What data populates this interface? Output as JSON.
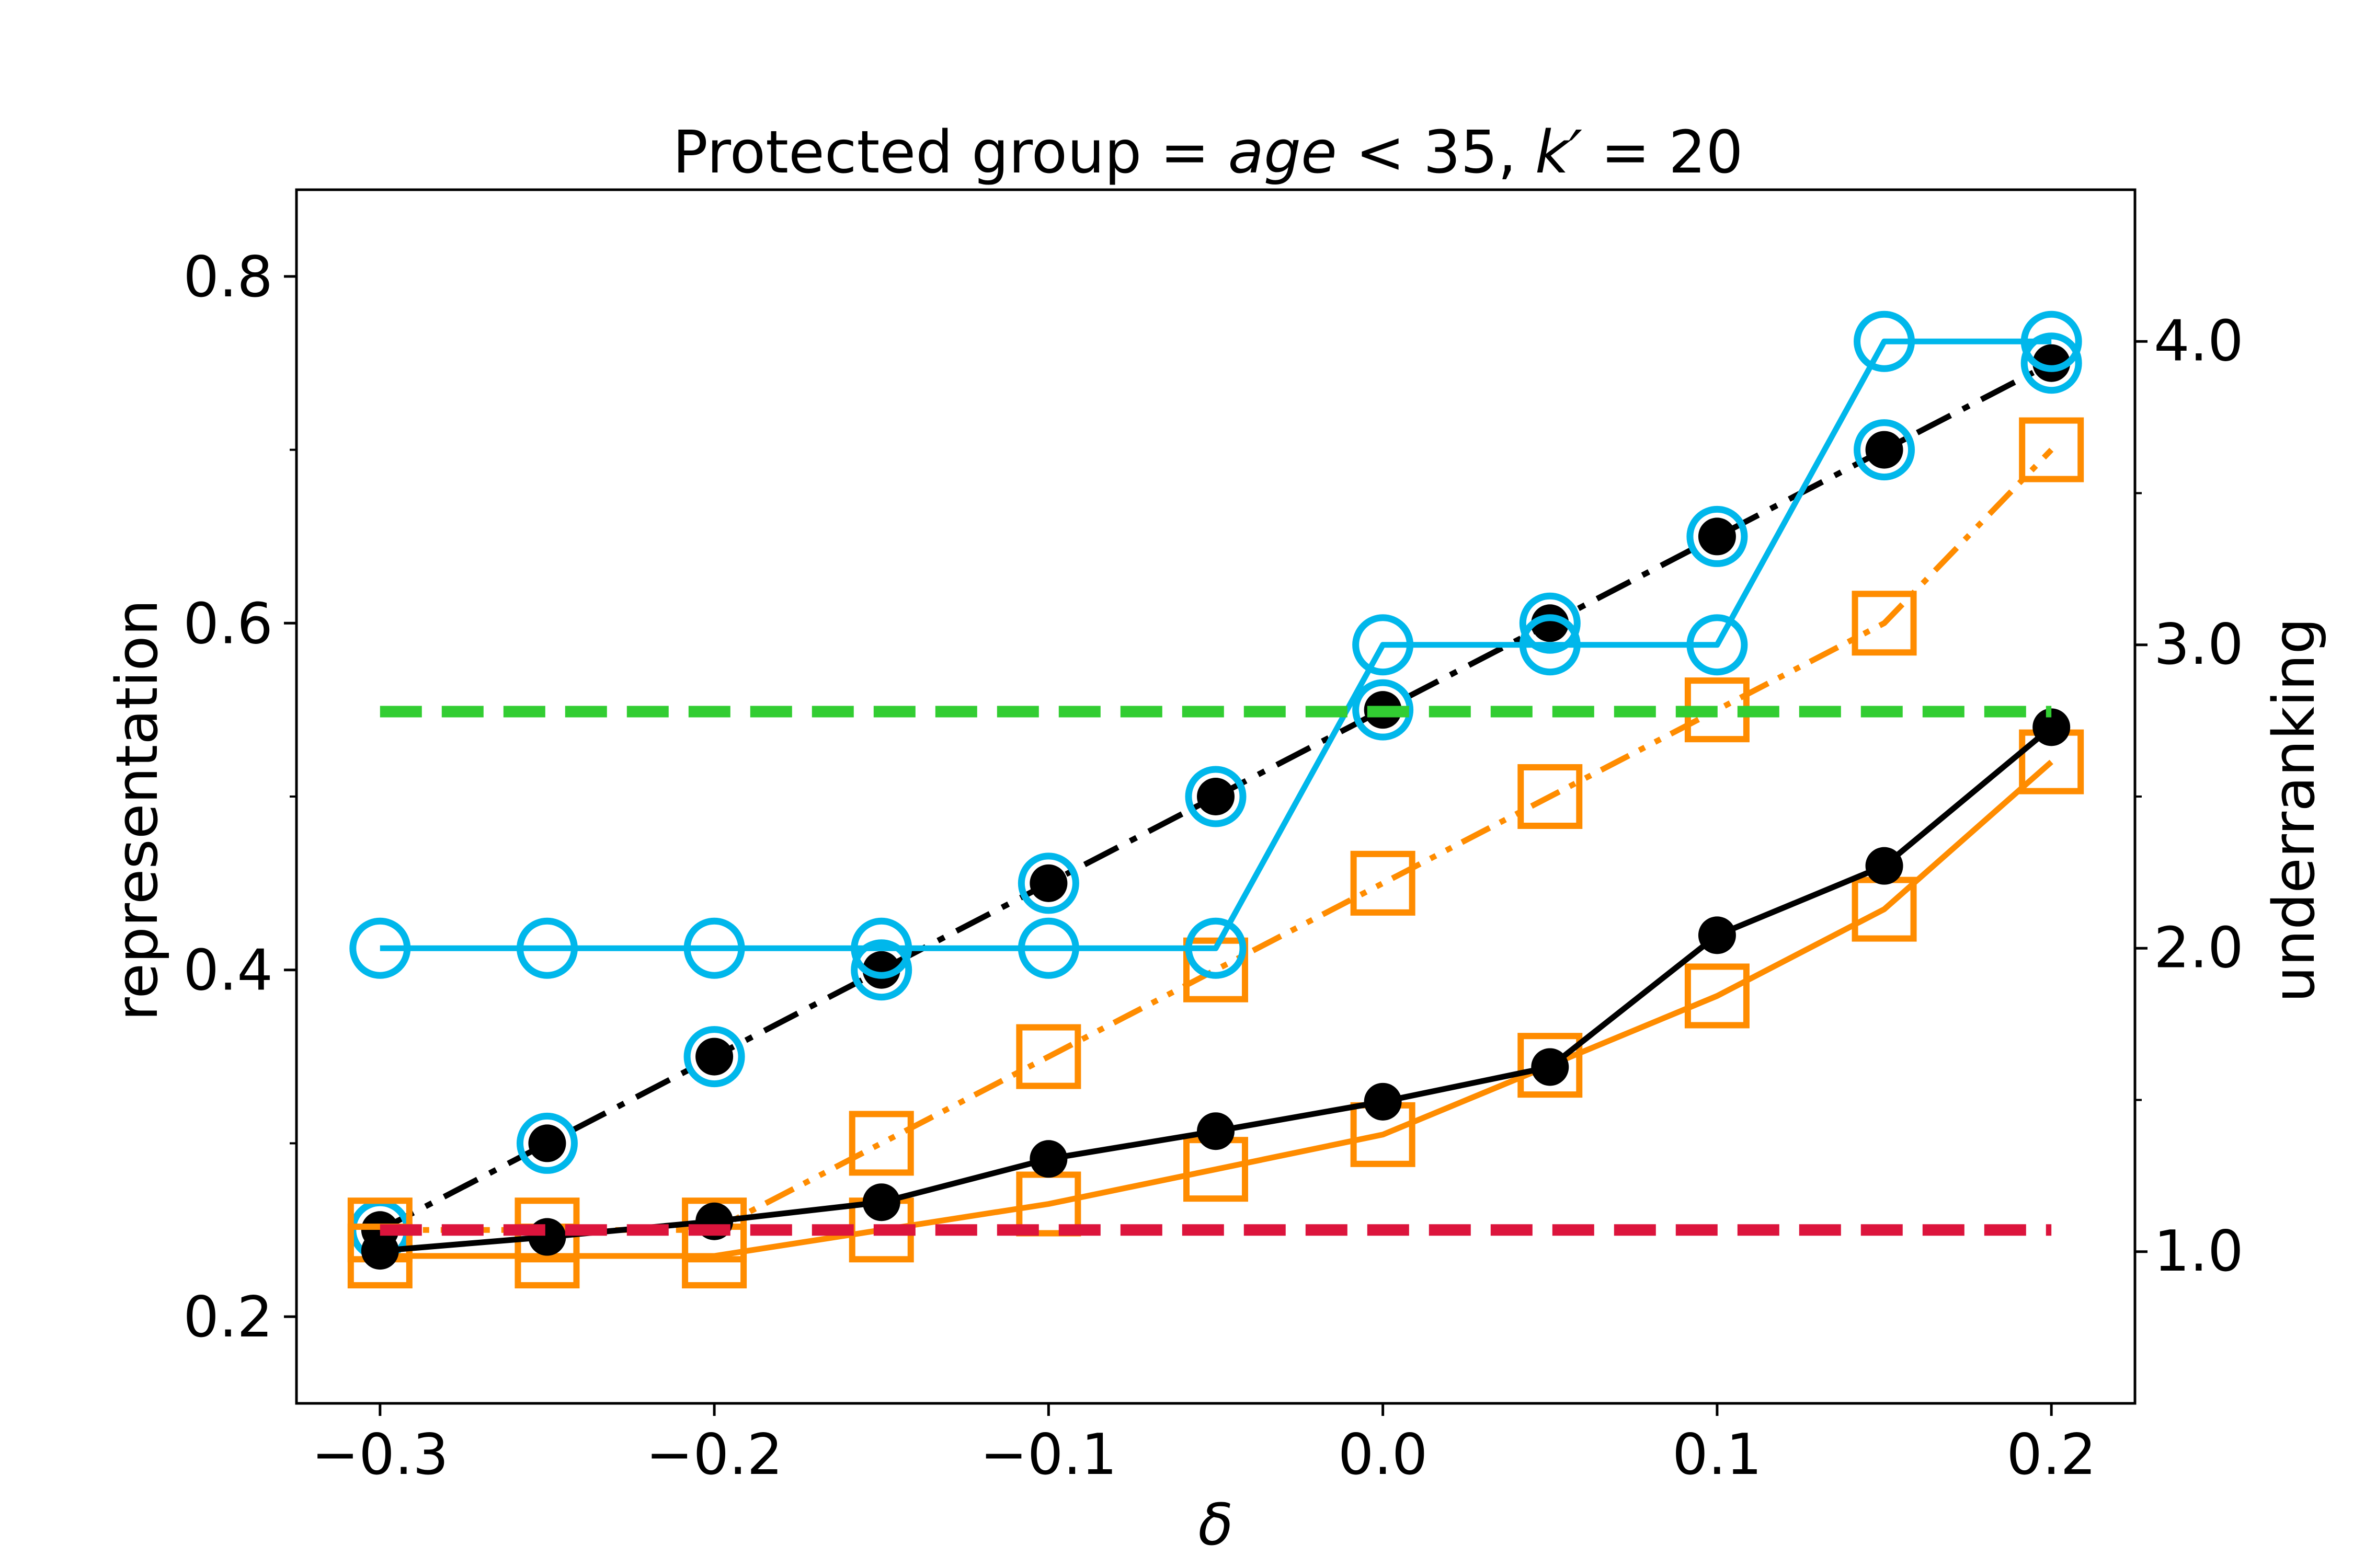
{
  "chart_data": {
    "type": "line",
    "title_parts": [
      "Protected group = ",
      "age",
      " < 35, ",
      "k′",
      " = 20"
    ],
    "xlabel": "δ",
    "ylabel_left": "representation",
    "ylabel_right": "underranking",
    "xlim": [
      -0.325,
      0.225
    ],
    "ylim_left": [
      0.15,
      0.85
    ],
    "ylim_right": [
      0.5,
      4.5
    ],
    "xticks": [
      -0.3,
      -0.2,
      -0.1,
      0.0,
      0.1,
      0.2
    ],
    "xtick_labels": [
      "−0.3",
      "−0.2",
      "−0.1",
      "0.0",
      "0.1",
      "0.2"
    ],
    "yticks_left": [
      0.2,
      0.4,
      0.6,
      0.8
    ],
    "ytick_labels_left": [
      "0.2",
      "0.4",
      "0.6",
      "0.8"
    ],
    "yticks_left_minor": [
      0.3,
      0.5,
      0.7
    ],
    "yticks_right": [
      1.0,
      2.0,
      3.0,
      4.0
    ],
    "ytick_labels_right": [
      "1.0",
      "2.0",
      "3.0",
      "4.0"
    ],
    "yticks_right_minor": [
      1.5,
      2.5,
      3.5
    ],
    "grid": false,
    "x": [
      -0.3,
      -0.25,
      -0.2,
      -0.15,
      -0.1,
      -0.05,
      0.0,
      0.05,
      0.1,
      0.15,
      0.2
    ],
    "series": [
      {
        "axis": "left",
        "color": "#000000",
        "style": "dashdot",
        "marker": "dot",
        "values": [
          0.25,
          0.3,
          0.35,
          0.4,
          0.45,
          0.5,
          0.55,
          0.6,
          0.65,
          0.7,
          0.75
        ]
      },
      {
        "axis": "left",
        "color": "#000000",
        "style": "none",
        "marker": "circle-open",
        "marker_color": "#00b7eb",
        "values": [
          0.25,
          0.3,
          0.35,
          0.4,
          0.45,
          0.5,
          0.55,
          0.6,
          0.65,
          0.7,
          0.75
        ]
      },
      {
        "axis": "left",
        "color": "#ff8c00",
        "style": "dashdotdot",
        "marker": "none",
        "values": [
          0.25,
          0.25,
          0.25,
          0.3,
          0.35,
          0.4,
          0.45,
          0.5,
          0.55,
          0.6,
          0.7
        ]
      },
      {
        "axis": "left",
        "color": "#ff8c00",
        "style": "none",
        "marker": "square-open",
        "values": [
          0.25,
          0.25,
          0.25,
          0.3,
          0.35,
          0.4,
          0.45,
          0.5,
          0.55,
          0.6,
          0.7
        ]
      },
      {
        "axis": "right",
        "color": "#00b7eb",
        "style": "solid",
        "marker": "circle-open",
        "values": [
          2.0,
          2.0,
          2.0,
          2.0,
          2.0,
          2.0,
          3.0,
          3.0,
          3.0,
          4.0,
          4.0
        ]
      },
      {
        "axis": "left",
        "color": "#ff8c00",
        "style": "solid",
        "marker": "square-open",
        "values": [
          0.235,
          0.235,
          0.235,
          0.25,
          0.265,
          0.285,
          0.305,
          0.345,
          0.385,
          0.435,
          0.52
        ]
      },
      {
        "axis": "left",
        "color": "#000000",
        "style": "solid",
        "marker": "dot",
        "values": [
          0.238,
          0.246,
          0.255,
          0.266,
          0.291,
          0.307,
          0.324,
          0.344,
          0.42,
          0.46,
          0.54
        ]
      },
      {
        "axis": "left",
        "color": "#32cd32",
        "style": "dashed",
        "marker": "none",
        "x_range": [
          -0.3,
          0.2
        ],
        "values_const": 0.549
      },
      {
        "axis": "left",
        "color": "#dc143c",
        "style": "dashed",
        "marker": "none",
        "x_range": [
          -0.3,
          0.2
        ],
        "values_const": 0.25
      }
    ]
  }
}
